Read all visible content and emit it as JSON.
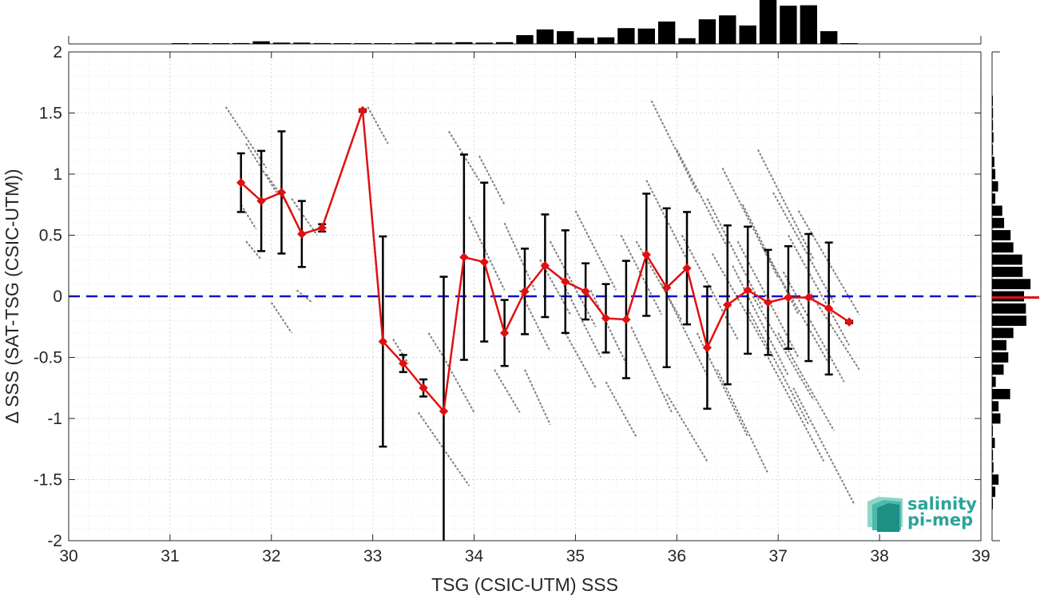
{
  "logo": {
    "line1": "salinity",
    "line2": "pi-mep"
  },
  "colors": {
    "mean": "#e01010",
    "errorbar": "#000000",
    "scatter": "#808080",
    "zero": "#1010d0",
    "hist": "#000000",
    "hist_mean": "#e01010",
    "logo": "#2aa39a"
  },
  "chart_data": {
    "type": "scatter",
    "xlabel": "TSG (CSIC-UTM) SSS",
    "ylabel": "Δ SSS (SAT-TSG (CSIC-UTM))",
    "xlim": [
      30,
      39
    ],
    "ylim": [
      -2,
      2
    ],
    "xticks": [
      "30",
      "31",
      "32",
      "33",
      "34",
      "35",
      "36",
      "37",
      "38",
      "39"
    ],
    "yticks": [
      "-2",
      "-1.5",
      "-1",
      "-0.5",
      "0",
      "0.5",
      "1",
      "1.5",
      "2"
    ],
    "grid": true,
    "zero_line": 0,
    "binned_mean": {
      "x": [
        31.7,
        31.9,
        32.1,
        32.3,
        32.5,
        32.9,
        33.1,
        33.3,
        33.5,
        33.7,
        33.9,
        34.1,
        34.3,
        34.5,
        34.7,
        34.9,
        35.1,
        35.3,
        35.5,
        35.7,
        35.9,
        36.1,
        36.3,
        36.5,
        36.7,
        36.9,
        37.1,
        37.3,
        37.5,
        37.7
      ],
      "y": [
        0.93,
        0.78,
        0.85,
        0.51,
        0.56,
        1.52,
        -0.37,
        -0.55,
        -0.75,
        -0.94,
        0.32,
        0.28,
        -0.3,
        0.04,
        0.25,
        0.12,
        0.04,
        -0.18,
        -0.19,
        0.34,
        0.07,
        0.23,
        -0.42,
        -0.07,
        0.05,
        -0.05,
        -0.01,
        -0.01,
        -0.1,
        -0.21
      ],
      "err": [
        0.24,
        0.41,
        0.5,
        0.27,
        0.03,
        0.01,
        0.86,
        0.07,
        0.07,
        1.1,
        0.84,
        0.65,
        0.27,
        0.35,
        0.42,
        0.42,
        0.23,
        0.28,
        0.48,
        0.5,
        0.65,
        0.46,
        0.5,
        0.65,
        0.52,
        0.43,
        0.42,
        0.52,
        0.54,
        0.01
      ]
    },
    "top_histogram": {
      "bin_centers": [
        31.1,
        31.3,
        31.5,
        31.7,
        31.9,
        32.1,
        32.3,
        32.5,
        32.7,
        32.9,
        33.1,
        33.3,
        33.5,
        33.7,
        33.9,
        34.1,
        34.3,
        34.5,
        34.7,
        34.9,
        35.1,
        35.3,
        35.5,
        35.7,
        35.9,
        36.1,
        36.3,
        36.5,
        36.7,
        36.9,
        37.1,
        37.3,
        37.5,
        37.7
      ],
      "relative_counts": [
        0.005,
        0.005,
        0.005,
        0.02,
        0.06,
        0.03,
        0.03,
        0.02,
        0.005,
        0.005,
        0.015,
        0.005,
        0.03,
        0.03,
        0.04,
        0.03,
        0.04,
        0.2,
        0.33,
        0.29,
        0.14,
        0.15,
        0.36,
        0.35,
        0.51,
        0.13,
        0.56,
        0.65,
        0.42,
        1.0,
        0.87,
        0.88,
        0.29,
        0.005
      ]
    },
    "right_histogram": {
      "bin_centers": [
        1.6,
        1.5,
        1.4,
        1.3,
        1.2,
        1.1,
        1.0,
        0.9,
        0.8,
        0.7,
        0.6,
        0.5,
        0.4,
        0.3,
        0.2,
        0.1,
        0.0,
        -0.1,
        -0.2,
        -0.3,
        -0.4,
        -0.5,
        -0.6,
        -0.7,
        -0.8,
        -0.9,
        -1.0,
        -1.1,
        -1.2,
        -1.3,
        -1.4,
        -1.5,
        -1.6,
        -1.7
      ],
      "relative_counts": [
        0.005,
        0.02,
        0.02,
        0.03,
        0.02,
        0.05,
        0.07,
        0.13,
        0.07,
        0.22,
        0.26,
        0.4,
        0.46,
        0.65,
        0.66,
        0.83,
        0.69,
        0.73,
        0.74,
        0.46,
        0.31,
        0.35,
        0.25,
        0.08,
        0.39,
        0.14,
        0.18,
        0.01,
        0.06,
        0.02,
        0.03,
        0.14,
        0.07,
        0.005
      ],
      "mean_marker": -0.01
    },
    "scatter_streaks": [
      [
        31.55,
        1.55,
        31.95,
        1.05
      ],
      [
        31.75,
        1.25,
        32.05,
        0.85
      ],
      [
        31.7,
        0.75,
        31.85,
        0.55
      ],
      [
        31.75,
        0.45,
        31.9,
        0.3
      ],
      [
        31.95,
        1.0,
        32.2,
        0.7
      ],
      [
        32.2,
        0.8,
        32.45,
        0.5
      ],
      [
        32.25,
        0.05,
        32.4,
        -0.05
      ],
      [
        32.0,
        -0.05,
        32.2,
        -0.3
      ],
      [
        32.95,
        1.55,
        33.15,
        1.25
      ],
      [
        33.55,
        -0.3,
        33.7,
        -0.5
      ],
      [
        33.45,
        -0.95,
        33.95,
        -1.55
      ],
      [
        33.2,
        -0.35,
        33.35,
        -0.55
      ],
      [
        33.7,
        -0.5,
        34.0,
        -0.95
      ],
      [
        34.2,
        -0.6,
        34.45,
        -0.95
      ],
      [
        33.75,
        1.35,
        34.05,
        0.95
      ],
      [
        34.05,
        1.15,
        34.3,
        0.75
      ],
      [
        33.95,
        0.65,
        34.3,
        0.05
      ],
      [
        34.3,
        0.6,
        34.6,
        0.05
      ],
      [
        34.45,
        0.05,
        34.75,
        -0.45
      ],
      [
        34.65,
        0.3,
        34.95,
        -0.15
      ],
      [
        34.5,
        -0.6,
        34.75,
        -1.05
      ],
      [
        34.75,
        0.45,
        35.2,
        -0.25
      ],
      [
        34.9,
        -0.3,
        35.2,
        -0.75
      ],
      [
        35.0,
        0.7,
        35.4,
        0.05
      ],
      [
        35.15,
        0.05,
        35.5,
        -0.55
      ],
      [
        35.3,
        -0.7,
        35.6,
        -1.15
      ],
      [
        35.45,
        0.5,
        35.85,
        -0.15
      ],
      [
        35.55,
        -0.25,
        35.95,
        -0.95
      ],
      [
        35.7,
        0.95,
        36.1,
        0.3
      ],
      [
        35.75,
        1.6,
        36.2,
        0.85
      ],
      [
        35.85,
        0.1,
        36.3,
        -0.65
      ],
      [
        35.9,
        -0.8,
        36.3,
        -1.35
      ],
      [
        36.0,
        1.2,
        36.5,
        0.4
      ],
      [
        36.05,
        0.5,
        36.6,
        -0.35
      ],
      [
        36.2,
        -0.3,
        36.7,
        -1.15
      ],
      [
        36.3,
        0.8,
        36.85,
        -0.1
      ],
      [
        36.4,
        -0.6,
        36.9,
        -1.45
      ],
      [
        36.45,
        1.05,
        37.0,
        0.15
      ],
      [
        36.55,
        0.25,
        37.1,
        -0.65
      ],
      [
        36.65,
        0.75,
        37.2,
        -0.15
      ],
      [
        36.7,
        -0.1,
        37.3,
        -1.05
      ],
      [
        36.8,
        1.2,
        37.35,
        0.3
      ],
      [
        36.85,
        0.4,
        37.5,
        -0.55
      ],
      [
        36.9,
        -0.5,
        37.45,
        -1.35
      ],
      [
        36.95,
        0.85,
        37.55,
        -0.05
      ],
      [
        37.05,
        0.2,
        37.65,
        -0.7
      ],
      [
        37.1,
        0.5,
        37.7,
        -0.4
      ],
      [
        37.15,
        -0.75,
        37.75,
        -1.7
      ],
      [
        37.2,
        0.7,
        37.8,
        -0.15
      ],
      [
        37.3,
        0.05,
        37.8,
        -0.6
      ],
      [
        36.6,
        0.45,
        37.2,
        -0.5
      ],
      [
        36.75,
        0.0,
        37.35,
        -0.85
      ],
      [
        35.6,
        0.45,
        36.05,
        -0.2
      ],
      [
        34.85,
        0.15,
        35.25,
        -0.5
      ],
      [
        36.35,
        0.35,
        36.9,
        -0.45
      ],
      [
        37.0,
        -0.3,
        37.55,
        -1.1
      ]
    ]
  }
}
